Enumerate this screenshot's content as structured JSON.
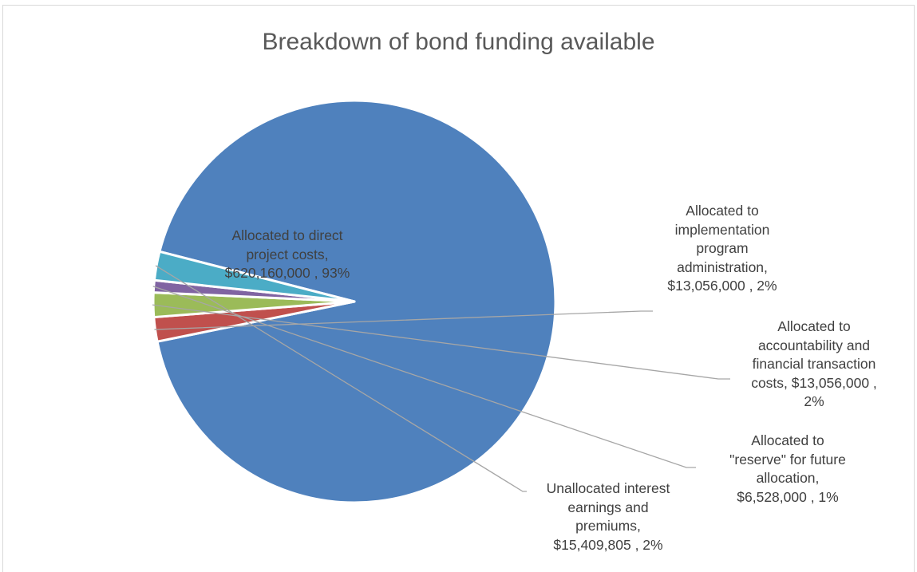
{
  "chart_data": {
    "type": "pie",
    "title": "Breakdown of bond funding available",
    "slices": [
      {
        "label": "Allocated to direct project costs",
        "value": 620160000,
        "percent": "93%",
        "color": "#4f81bd",
        "data_label": "Allocated to direct\nproject costs,\n$620,160,000 , 93%"
      },
      {
        "label": "Allocated to implementation program administration",
        "value": 13056000,
        "percent": "2%",
        "color": "#c0504d",
        "data_label": "Allocated to\nimplementation\nprogram\nadministration,\n$13,056,000 , 2%"
      },
      {
        "label": "Allocated to accountability and financial transaction costs",
        "value": 13056000,
        "percent": "2%",
        "color": "#9bbb59",
        "data_label": "Allocated to\naccountability and\nfinancial transaction\ncosts, $13,056,000 ,\n2%"
      },
      {
        "label": "Allocated to \"reserve\" for future allocation",
        "value": 6528000,
        "percent": "1%",
        "color": "#8064a2",
        "data_label": "Allocated to\n\"reserve\" for future\nallocation,\n$6,528,000 , 1%"
      },
      {
        "label": "Unallocated interest earnings and premiums",
        "value": 15409805,
        "percent": "2%",
        "color": "#4bacc6",
        "data_label": "Unallocated interest\nearnings and\npremiums,\n$15,409,805 , 2%"
      }
    ],
    "legend": "none",
    "leader_line_color": "#a6a6a6"
  }
}
